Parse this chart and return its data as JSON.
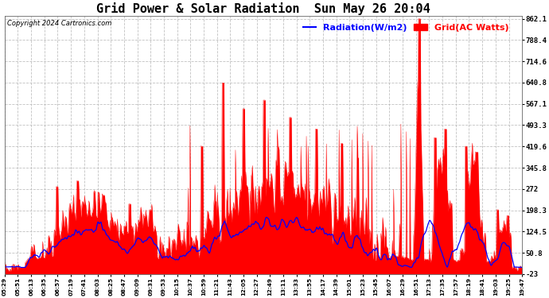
{
  "title": "Grid Power & Solar Radiation  Sun May 26 20:04",
  "copyright": "Copyright 2024 Cartronics.com",
  "legend_radiation": "Radiation(W/m2)",
  "legend_grid": "Grid(AC Watts)",
  "ylim": [
    -23.0,
    862.1
  ],
  "yticks": [
    862.1,
    788.4,
    714.6,
    640.8,
    567.1,
    493.3,
    419.6,
    345.8,
    272.0,
    198.3,
    124.5,
    50.8,
    -23.0
  ],
  "x_labels": [
    "05:29",
    "05:51",
    "06:13",
    "06:35",
    "06:57",
    "07:19",
    "07:41",
    "08:03",
    "08:25",
    "08:47",
    "09:09",
    "09:31",
    "09:53",
    "10:15",
    "10:37",
    "10:59",
    "11:21",
    "11:43",
    "12:05",
    "12:27",
    "12:49",
    "13:11",
    "13:33",
    "13:55",
    "14:17",
    "14:39",
    "15:01",
    "15:23",
    "15:45",
    "16:07",
    "16:29",
    "16:51",
    "17:13",
    "17:35",
    "17:57",
    "18:19",
    "18:41",
    "19:03",
    "19:25",
    "19:47"
  ],
  "background_color": "#ffffff",
  "grid_color": "#aaaaaa",
  "radiation_color": "#0000ff",
  "grid_ac_color": "#ff0000",
  "title_fontsize": 11,
  "legend_fontsize": 8,
  "copyright_fontsize": 6
}
